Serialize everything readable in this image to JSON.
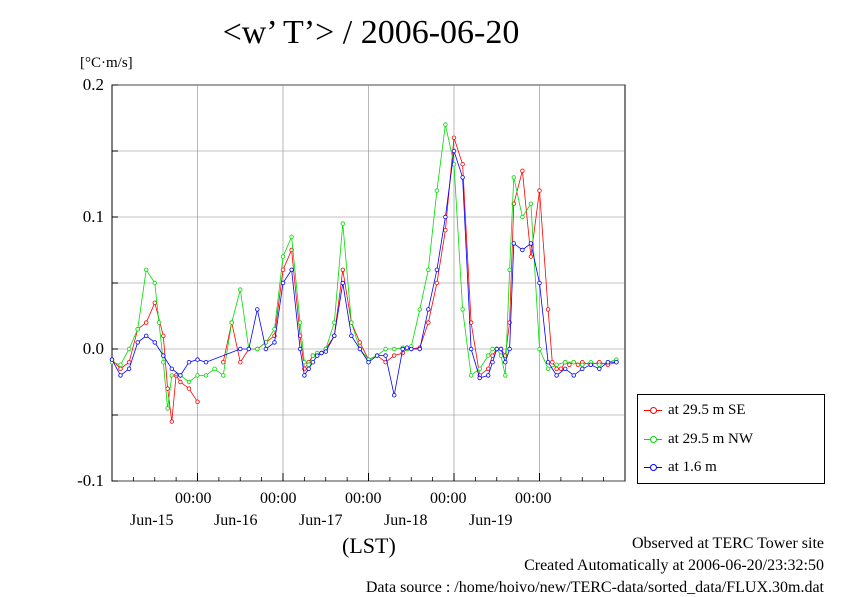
{
  "title": "<w’ T’> / 2006-06-20",
  "unit_label": "[°C·m/s]",
  "x_axis_label": "(LST)",
  "legend": [
    {
      "label": "at 29.5 m SE",
      "color": "#ff0000"
    },
    {
      "label": "at 29.5 m NW",
      "color": "#00dd00"
    },
    {
      "label": "at 1.6 m",
      "color": "#0000ff"
    }
  ],
  "footer": {
    "observed": "Observed at TERC Tower site",
    "created": "Created Automatically at 2006-06-20/23:32:50",
    "source": "Data source : /home/hoivo/new/TERC-data/sorted_data/FLUX.30m.dat"
  },
  "chart_data": {
    "type": "line",
    "title": "<w’ T’> / 2006-06-20",
    "ylabel": "[°C·m/s]",
    "xlabel": "(LST)",
    "ylim": [
      -0.1,
      0.2
    ],
    "yticks": [
      -0.1,
      0.0,
      0.1,
      0.2
    ],
    "yticks_labels": [
      "-0.1",
      "0.0",
      "0.1",
      "0.2"
    ],
    "xlim_days": [
      14.0,
      20.0
    ],
    "xticks": [
      {
        "day": 15.0,
        "time_label": "00:00",
        "date_label": "Jun-15"
      },
      {
        "day": 16.0,
        "time_label": "00:00",
        "date_label": "Jun-16"
      },
      {
        "day": 17.0,
        "time_label": "00:00",
        "date_label": "Jun-17"
      },
      {
        "day": 18.0,
        "time_label": "00:00",
        "date_label": "Jun-18"
      },
      {
        "day": 19.0,
        "time_label": "00:00",
        "date_label": "Jun-19"
      }
    ],
    "grid": true,
    "legend_position": "lower-right outside",
    "series": [
      {
        "name": "at 29.5 m SE",
        "color": "#ff0000",
        "x": [
          14.0,
          14.1,
          14.2,
          14.3,
          14.4,
          14.5,
          14.6,
          14.65,
          14.7,
          14.75,
          14.8,
          14.9,
          15.0,
          null,
          15.3,
          15.4,
          15.5,
          15.6,
          15.7,
          15.8,
          15.9,
          16.0,
          16.1,
          16.2,
          16.25,
          16.3,
          16.35,
          16.4,
          16.45,
          16.5,
          16.6,
          16.7,
          16.8,
          16.9,
          17.0,
          17.1,
          17.2,
          17.3,
          17.4,
          17.45,
          17.5,
          17.6,
          17.7,
          17.8,
          17.9,
          18.0,
          18.1,
          18.2,
          18.3,
          18.4,
          18.45,
          18.5,
          18.55,
          18.6,
          18.65,
          18.7,
          18.8,
          18.9,
          19.0,
          19.1,
          19.15,
          19.2,
          19.25,
          19.3,
          19.35,
          19.4,
          19.45,
          19.5,
          19.6,
          19.7,
          19.8,
          19.9
        ],
        "y": [
          -0.008,
          -0.015,
          -0.01,
          0.015,
          0.02,
          0.035,
          0.01,
          -0.03,
          -0.055,
          -0.02,
          -0.025,
          -0.03,
          -0.04,
          null,
          -0.01,
          0.02,
          -0.01,
          0.0,
          0.0,
          0.005,
          0.01,
          0.06,
          0.075,
          0.01,
          -0.015,
          -0.01,
          -0.005,
          -0.005,
          -0.003,
          0.0,
          0.01,
          0.06,
          0.02,
          0.005,
          -0.008,
          -0.005,
          -0.01,
          -0.005,
          -0.003,
          0.0,
          0.0,
          0.001,
          0.02,
          0.05,
          0.09,
          0.16,
          0.14,
          0.02,
          -0.02,
          -0.015,
          -0.005,
          0.0,
          0.0,
          -0.005,
          0.02,
          0.11,
          0.135,
          0.07,
          0.12,
          0.03,
          -0.01,
          -0.015,
          -0.015,
          -0.01,
          -0.012,
          -0.01,
          -0.012,
          -0.01,
          -0.012,
          -0.01,
          -0.012,
          -0.01
        ]
      },
      {
        "name": "at 29.5 m NW",
        "color": "#00dd00",
        "x": [
          14.0,
          14.1,
          14.2,
          14.3,
          14.4,
          14.5,
          14.55,
          14.6,
          14.65,
          14.7,
          14.8,
          14.9,
          15.0,
          15.1,
          15.2,
          15.3,
          15.4,
          15.5,
          15.6,
          15.7,
          15.8,
          15.9,
          16.0,
          16.1,
          16.2,
          16.25,
          16.3,
          16.35,
          16.4,
          16.45,
          16.5,
          16.6,
          16.7,
          16.8,
          16.9,
          17.0,
          17.1,
          17.2,
          17.3,
          17.4,
          17.45,
          17.5,
          17.6,
          17.7,
          17.8,
          17.9,
          18.0,
          18.1,
          18.2,
          18.3,
          18.4,
          18.45,
          18.5,
          18.55,
          18.6,
          18.65,
          18.7,
          18.8,
          18.9,
          19.0,
          19.1,
          19.2,
          19.3,
          19.4,
          19.5,
          19.6,
          19.7,
          19.8,
          19.9
        ],
        "y": [
          -0.01,
          -0.012,
          0.0,
          0.015,
          0.06,
          0.05,
          0.02,
          -0.01,
          -0.045,
          -0.02,
          -0.02,
          -0.025,
          -0.02,
          -0.02,
          -0.015,
          -0.02,
          0.02,
          0.045,
          0.0,
          0.0,
          0.005,
          0.015,
          0.07,
          0.085,
          0.02,
          -0.01,
          -0.012,
          -0.005,
          -0.003,
          -0.003,
          0.0,
          0.02,
          0.095,
          0.02,
          0.0,
          -0.008,
          -0.005,
          0.0,
          0.0,
          0.001,
          0.0,
          0.002,
          0.03,
          0.06,
          0.12,
          0.17,
          0.14,
          0.03,
          -0.02,
          -0.015,
          -0.005,
          0.0,
          0.0,
          -0.005,
          -0.02,
          0.06,
          0.13,
          0.1,
          0.11,
          0.0,
          -0.015,
          -0.012,
          -0.01,
          -0.01,
          -0.012,
          -0.01,
          -0.012,
          -0.01,
          -0.008
        ]
      },
      {
        "name": "at 1.6 m",
        "color": "#0000ff",
        "x": [
          14.0,
          14.1,
          14.2,
          14.3,
          14.4,
          14.5,
          14.6,
          14.7,
          14.8,
          14.9,
          15.0,
          15.1,
          15.5,
          15.6,
          15.7,
          15.8,
          15.9,
          16.0,
          16.1,
          16.2,
          16.25,
          16.3,
          16.35,
          16.4,
          16.45,
          16.5,
          16.6,
          16.7,
          16.8,
          16.9,
          17.0,
          17.1,
          17.2,
          17.3,
          17.4,
          17.45,
          17.5,
          17.6,
          17.7,
          17.8,
          17.9,
          18.0,
          18.1,
          18.2,
          18.3,
          18.4,
          18.45,
          18.5,
          18.55,
          18.6,
          18.65,
          18.7,
          18.8,
          18.9,
          19.0,
          19.1,
          19.2,
          19.3,
          19.4,
          19.5,
          19.6,
          19.7,
          19.8,
          19.9
        ],
        "y": [
          -0.008,
          -0.02,
          -0.015,
          0.005,
          0.01,
          0.005,
          -0.005,
          -0.015,
          -0.02,
          -0.01,
          -0.008,
          -0.01,
          0.0,
          0.0,
          0.03,
          0.0,
          0.005,
          0.05,
          0.06,
          0.0,
          -0.02,
          -0.015,
          -0.01,
          -0.005,
          -0.003,
          -0.002,
          0.01,
          0.05,
          0.01,
          0.0,
          -0.01,
          -0.005,
          -0.005,
          -0.035,
          0.0,
          0.001,
          0.0,
          0.0,
          0.03,
          0.06,
          0.1,
          0.15,
          0.13,
          0.0,
          -0.022,
          -0.02,
          -0.01,
          0.0,
          0.0,
          -0.01,
          0.0,
          0.08,
          0.075,
          0.08,
          0.05,
          -0.01,
          -0.02,
          -0.015,
          -0.02,
          -0.015,
          -0.012,
          -0.015,
          -0.01,
          -0.01
        ]
      }
    ]
  }
}
